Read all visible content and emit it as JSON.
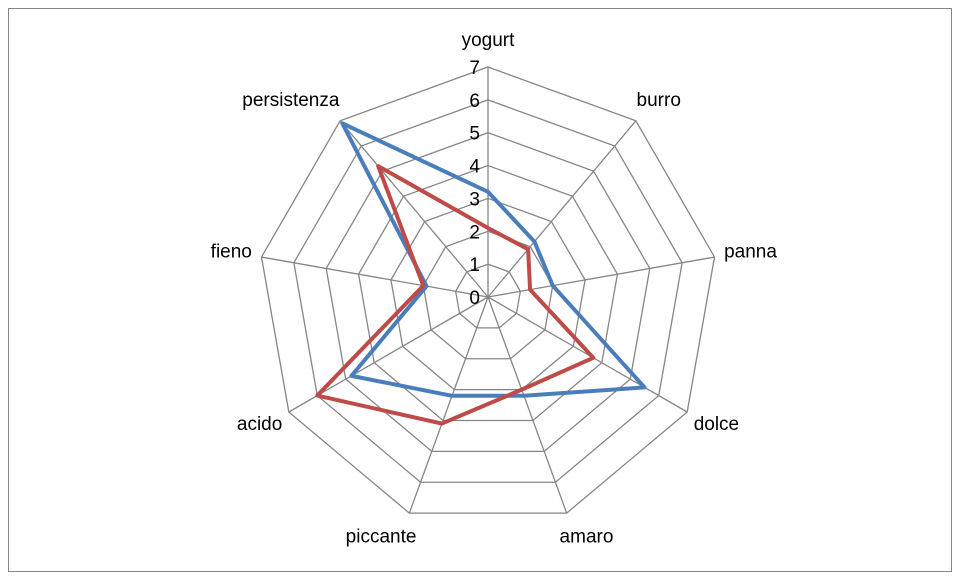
{
  "chart_data": {
    "type": "radar",
    "categories": [
      "yogurt",
      "burro",
      "panna",
      "dolce",
      "amaro",
      "piccante",
      "acido",
      "fieno",
      "persistenza"
    ],
    "series": [
      {
        "color": "#4a7ebb",
        "values": [
          3.2,
          2.2,
          2.0,
          5.5,
          3.2,
          3.2,
          4.8,
          1.9,
          6.9
        ]
      },
      {
        "color": "#be4b48",
        "values": [
          2.1,
          1.9,
          1.3,
          3.7,
          3.0,
          4.1,
          6.0,
          2.0,
          5.2
        ]
      }
    ],
    "ylim": [
      0,
      7
    ],
    "yticks": [
      0,
      1,
      2,
      3,
      4,
      5,
      6,
      7
    ],
    "grid": true
  }
}
